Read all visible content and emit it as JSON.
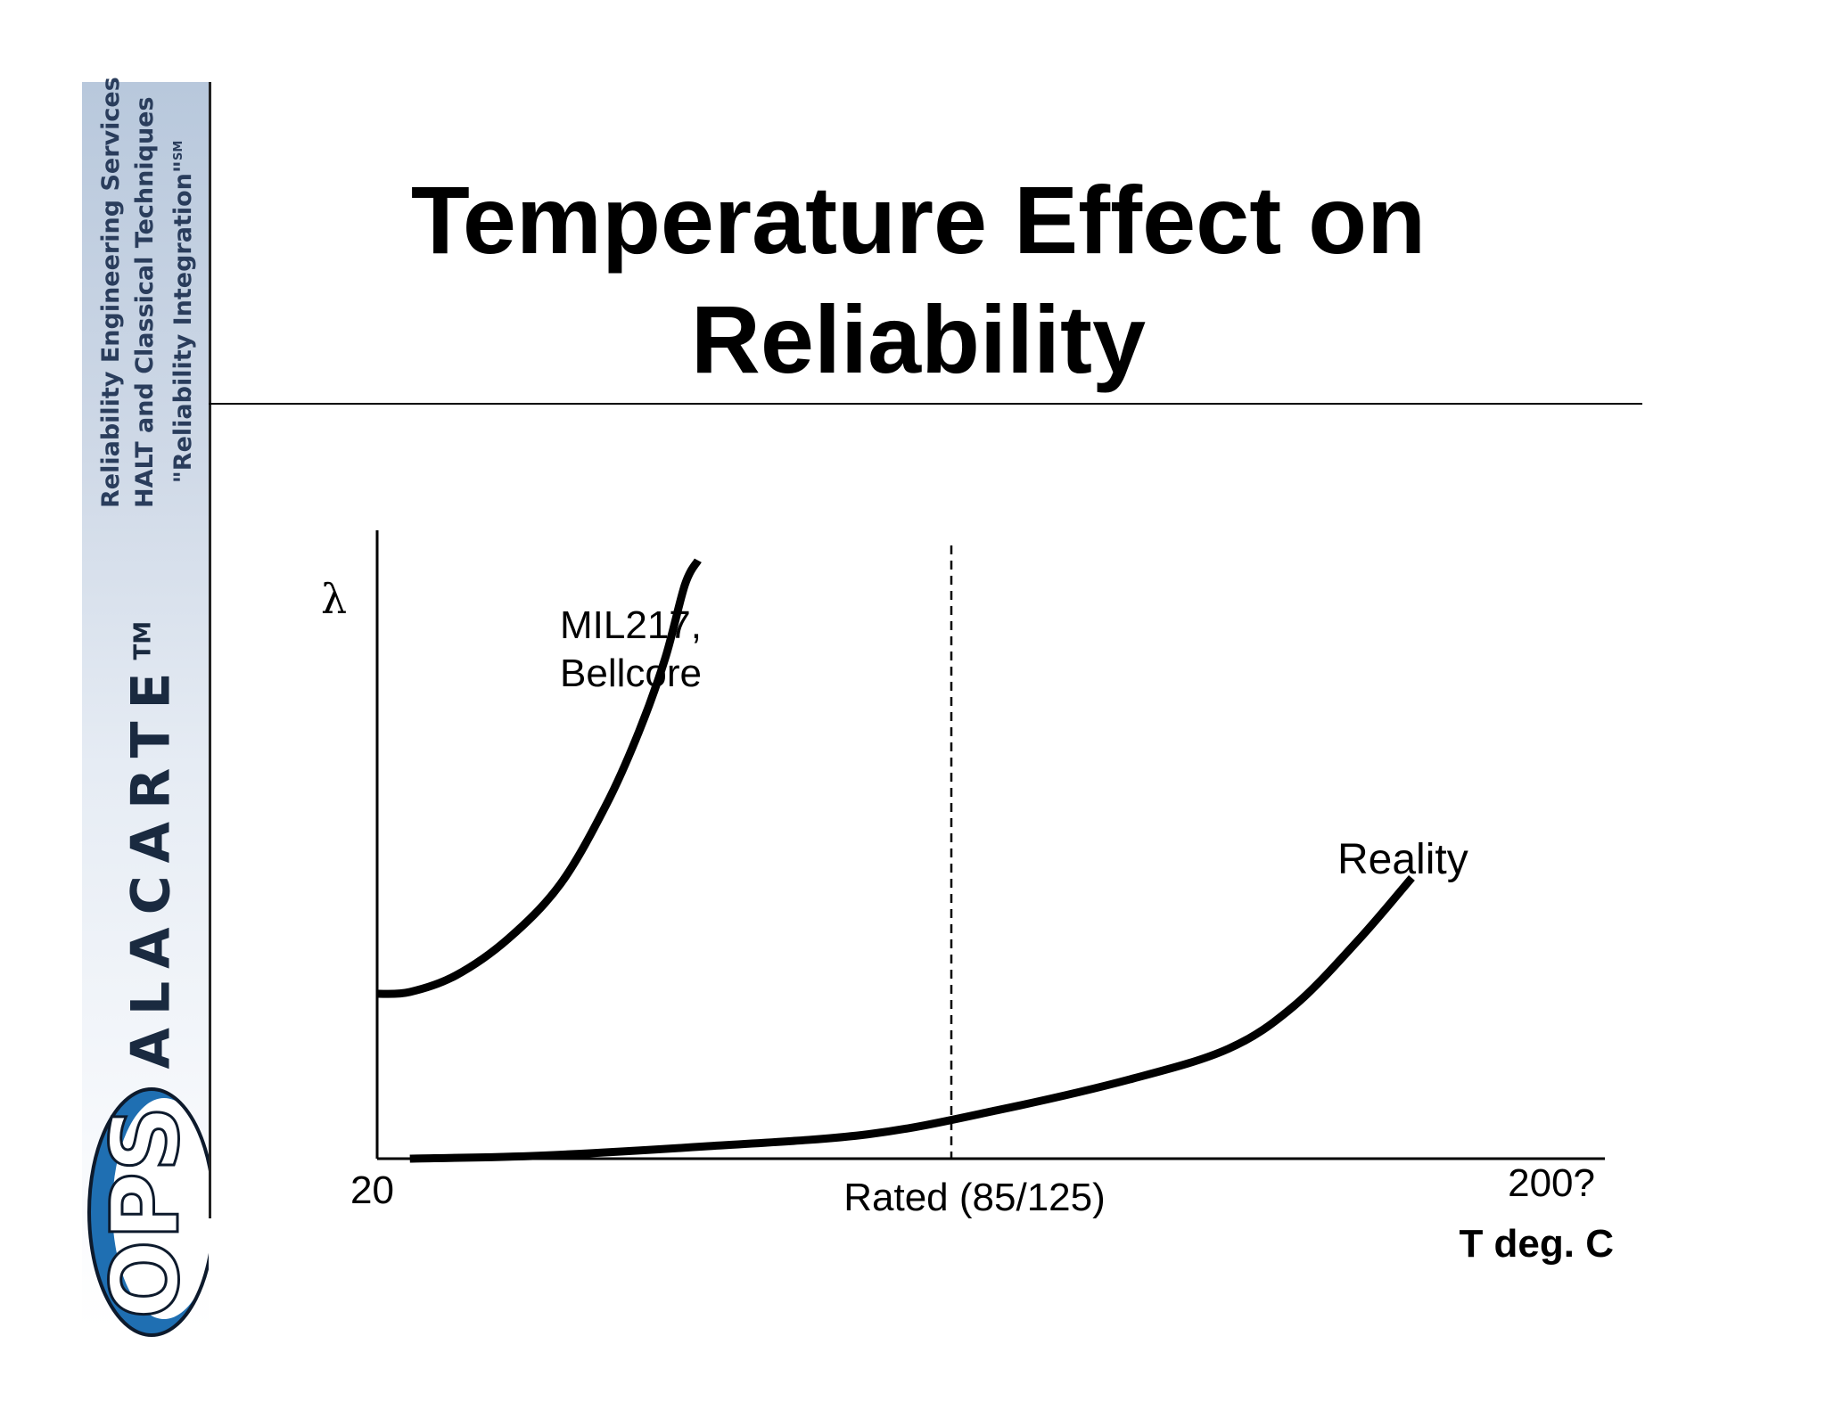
{
  "slide": {
    "title_line1": "Temperature Effect on",
    "title_line2": "Reliability"
  },
  "sidebar": {
    "line1": "Reliability Engineering Services",
    "line2": "HALT and Classical Techniques",
    "line3": "\"Reliability Integration\"",
    "line3_mark": "SM",
    "brand": "ALACARTE",
    "brand_mark": "TM",
    "logo_text": "OPS",
    "colors": {
      "gradient_top": "#b8c8dc",
      "logo_blue": "#1f6fb2",
      "logo_dark": "#0d1a2c"
    }
  },
  "chart_data": {
    "type": "line",
    "ylabel": "λ",
    "xlabel": "T deg. C",
    "x_tick_labels": [
      {
        "label": "20",
        "x": 20
      },
      {
        "label": "Rated (85/125)",
        "x": 85
      },
      {
        "label": "200?",
        "x": 200
      }
    ],
    "xlim": [
      20,
      200
    ],
    "ylim": [
      0,
      100
    ],
    "reference_line": {
      "x": 85,
      "style": "dashed"
    },
    "series": [
      {
        "name": "MIL217,\nBellcore",
        "label_lines": [
          "MIL217,",
          "Bellcore"
        ],
        "x": [
          20,
          25,
          32,
          40,
          48,
          55,
          60,
          64,
          67,
          69
        ],
        "y": [
          27,
          27.3,
          30,
          36,
          45,
          58,
          70,
          82,
          94,
          98
        ]
      },
      {
        "name": "Reality",
        "label_lines": [
          "Reality"
        ],
        "x": [
          25,
          45,
          70,
          95,
          115,
          135,
          150,
          160,
          170,
          178
        ],
        "y": [
          0,
          0.5,
          2,
          4,
          8,
          13,
          18,
          25,
          36,
          46
        ]
      }
    ]
  }
}
